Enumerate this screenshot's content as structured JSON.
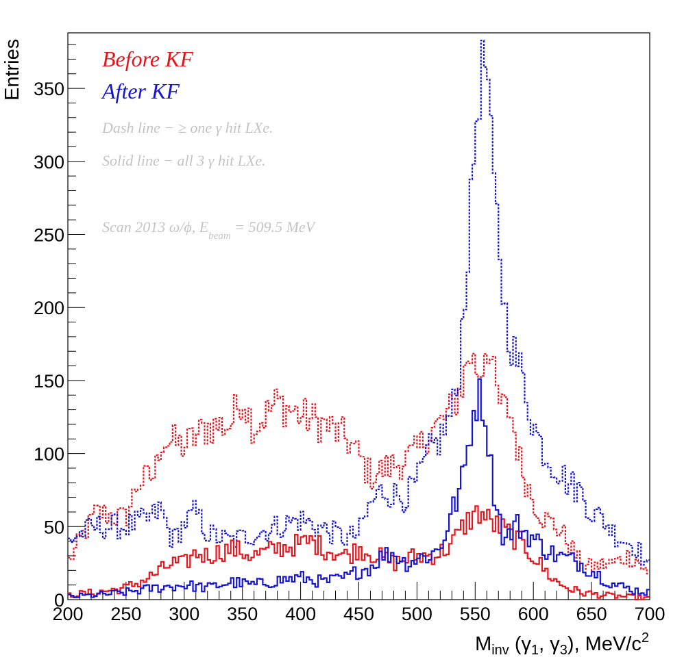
{
  "chart_data": {
    "type": "line",
    "step": true,
    "xlabel": {
      "main": "M",
      "sub": "inv",
      "rest": " (γ",
      "s1": "1",
      "mid": ", γ",
      "s3": "3",
      "end": "), MeV/c",
      "sup": "2"
    },
    "ylabel": "Entries",
    "xlim": [
      200,
      700
    ],
    "ylim": [
      0,
      388
    ],
    "x_ticks": [
      200,
      250,
      300,
      350,
      400,
      450,
      500,
      550,
      600,
      650,
      700
    ],
    "y_ticks": [
      0,
      50,
      100,
      150,
      200,
      250,
      300,
      350
    ],
    "legend_placement": "top-left",
    "legend": [
      {
        "text": "Before KF",
        "color": "#e8141c"
      },
      {
        "text": "After KF",
        "color": "#1414d2"
      }
    ],
    "annotations": [
      "Dash line − ≥ one γ hit LXe.",
      "Solid line − all 3 γ hit LXe."
    ],
    "scan_note": {
      "pre": "Scan 2013  ω/ϕ, E",
      "sub": "beam",
      "post": " = 509.5 MeV"
    },
    "colors": {
      "before": "#e8141c",
      "after": "#1414d2",
      "note": "#c4c4c4"
    },
    "series": [
      {
        "name": "Before KF",
        "style": "dashed",
        "color": "#e8141c",
        "x": [
          200,
          225,
          250,
          260,
          275,
          280,
          300,
          320,
          340,
          350,
          360,
          380,
          400,
          420,
          440,
          450,
          460,
          480,
          500,
          510,
          520,
          530,
          540,
          545,
          550,
          555,
          560,
          570,
          575,
          580,
          590,
          600,
          610,
          620,
          630,
          640,
          650,
          660,
          670,
          680,
          690,
          700
        ],
        "y": [
          25,
          60,
          55,
          80,
          85,
          110,
          105,
          118,
          120,
          140,
          118,
          135,
          126,
          120,
          110,
          98,
          85,
          92,
          100,
          115,
          120,
          130,
          150,
          170,
          160,
          155,
          180,
          135,
          130,
          130,
          90,
          68,
          55,
          50,
          40,
          25,
          22,
          24,
          25,
          30,
          27,
          15
        ]
      },
      {
        "name": "After KF",
        "style": "dashed",
        "color": "#1414d2",
        "x": [
          200,
          210,
          225,
          250,
          270,
          280,
          290,
          300,
          310,
          320,
          340,
          360,
          380,
          400,
          420,
          440,
          450,
          460,
          470,
          480,
          490,
          500,
          510,
          520,
          530,
          535,
          540,
          545,
          550,
          555,
          560,
          565,
          570,
          575,
          580,
          585,
          590,
          600,
          610,
          620,
          630,
          640,
          650,
          660,
          670,
          680,
          690,
          700
        ],
        "y": [
          40,
          45,
          50,
          50,
          55,
          62,
          40,
          52,
          60,
          45,
          40,
          45,
          50,
          55,
          48,
          42,
          45,
          65,
          75,
          72,
          70,
          80,
          100,
          110,
          128,
          145,
          200,
          250,
          320,
          360,
          370,
          290,
          250,
          200,
          180,
          165,
          155,
          120,
          100,
          90,
          80,
          75,
          60,
          55,
          45,
          40,
          35,
          20
        ]
      },
      {
        "name": "Before KF",
        "style": "solid",
        "color": "#e8141c",
        "x": [
          200,
          225,
          250,
          270,
          280,
          290,
          300,
          310,
          320,
          340,
          360,
          380,
          400,
          410,
          420,
          440,
          450,
          460,
          480,
          500,
          510,
          520,
          530,
          540,
          545,
          550,
          555,
          560,
          570,
          580,
          590,
          600,
          610,
          620,
          630,
          640,
          650,
          660,
          680,
          700
        ],
        "y": [
          3,
          5,
          8,
          15,
          20,
          25,
          24,
          32,
          30,
          35,
          30,
          35,
          38,
          40,
          35,
          30,
          35,
          32,
          25,
          30,
          30,
          32,
          38,
          50,
          55,
          58,
          60,
          55,
          50,
          45,
          38,
          30,
          20,
          12,
          8,
          5,
          4,
          3,
          2,
          1
        ]
      },
      {
        "name": "After KF",
        "style": "solid",
        "color": "#1414d2",
        "x": [
          200,
          225,
          250,
          275,
          300,
          320,
          340,
          360,
          380,
          400,
          420,
          440,
          450,
          460,
          470,
          480,
          490,
          500,
          510,
          520,
          530,
          535,
          540,
          545,
          550,
          555,
          560,
          565,
          570,
          575,
          580,
          585,
          590,
          600,
          610,
          620,
          630,
          640,
          650,
          660,
          670,
          680,
          690,
          700
        ],
        "y": [
          2,
          3,
          5,
          8,
          10,
          8,
          12,
          10,
          13,
          15,
          12,
          15,
          20,
          22,
          30,
          32,
          25,
          28,
          30,
          35,
          60,
          70,
          85,
          110,
          135,
          140,
          120,
          80,
          60,
          40,
          45,
          52,
          48,
          42,
          35,
          30,
          28,
          25,
          20,
          15,
          10,
          8,
          6,
          5
        ]
      }
    ]
  }
}
